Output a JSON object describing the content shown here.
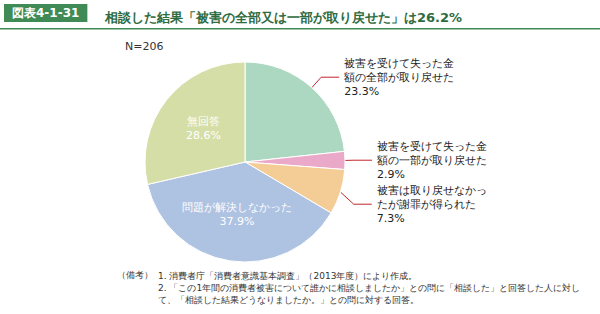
{
  "header": "図表4-1-31",
  "chart_data": {
    "type": "pie",
    "title": "相談した結果「被害の全部又は一部が取り戻せた」は26.2%",
    "subtitle": "N=206",
    "categories": [
      "被害を受けて失った金額の全部が取り戻せた",
      "被害を受けて失った金額の一部が取り戻せた",
      "被害は取り戻せなかったが謝罪が得られた",
      "問題が解決しなかった",
      "無回答"
    ],
    "values": [
      23.3,
      2.9,
      7.3,
      37.9,
      28.6
    ],
    "value_labels": [
      "23.3%",
      "2.9%",
      "7.3%",
      "37.9%",
      "28.6%"
    ],
    "colors": [
      "#acd8c2",
      "#eaa9c9",
      "#f4cd96",
      "#aec2e2",
      "#d5dea6"
    ],
    "data_labels": true
  },
  "notes": {
    "heading": "（備考）",
    "items": [
      "1. 消費者庁「消費者意識基本調査」（2013年度）により作成。",
      "2. 「この1年間の消費者被害について誰かに相談しましたか」との問に「相談した」と回答した人に対して、「相談した結果どうなりましたか。」との問に対する回答。"
    ]
  }
}
